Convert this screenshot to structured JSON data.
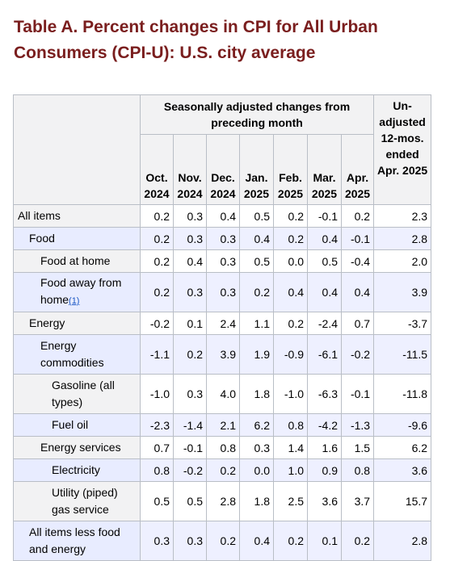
{
  "title": "Table A. Percent changes in CPI for All Urban Consumers (CPI-U): U.S. city average",
  "header": {
    "seasonally_adjusted": "Seasonally adjusted changes from preceding month",
    "unadjusted": "Un-adjusted 12-mos. ended Apr. 2025",
    "months": [
      {
        "month": "Oct.",
        "year": "2024"
      },
      {
        "month": "Nov.",
        "year": "2024"
      },
      {
        "month": "Dec.",
        "year": "2024"
      },
      {
        "month": "Jan.",
        "year": "2025"
      },
      {
        "month": "Feb.",
        "year": "2025"
      },
      {
        "month": "Mar.",
        "year": "2025"
      },
      {
        "month": "Apr.",
        "year": "2025"
      }
    ]
  },
  "rows": [
    {
      "label": "All items",
      "footnote": "",
      "level": 0,
      "values": [
        "0.2",
        "0.3",
        "0.4",
        "0.5",
        "0.2",
        "-0.1",
        "0.2"
      ],
      "unadjusted": "2.3"
    },
    {
      "label": "Food",
      "footnote": "",
      "level": 1,
      "values": [
        "0.2",
        "0.3",
        "0.3",
        "0.4",
        "0.2",
        "0.4",
        "-0.1"
      ],
      "unadjusted": "2.8"
    },
    {
      "label": "Food at home",
      "footnote": "",
      "level": 2,
      "values": [
        "0.2",
        "0.4",
        "0.3",
        "0.5",
        "0.0",
        "0.5",
        "-0.4"
      ],
      "unadjusted": "2.0"
    },
    {
      "label": "Food away from home",
      "footnote": "(1)",
      "level": 2,
      "values": [
        "0.2",
        "0.3",
        "0.3",
        "0.2",
        "0.4",
        "0.4",
        "0.4"
      ],
      "unadjusted": "3.9"
    },
    {
      "label": "Energy",
      "footnote": "",
      "level": 1,
      "values": [
        "-0.2",
        "0.1",
        "2.4",
        "1.1",
        "0.2",
        "-2.4",
        "0.7"
      ],
      "unadjusted": "-3.7"
    },
    {
      "label": "Energy commodities",
      "footnote": "",
      "level": 2,
      "values": [
        "-1.1",
        "0.2",
        "3.9",
        "1.9",
        "-0.9",
        "-6.1",
        "-0.2"
      ],
      "unadjusted": "-11.5"
    },
    {
      "label": "Gasoline (all types)",
      "footnote": "",
      "level": 3,
      "values": [
        "-1.0",
        "0.3",
        "4.0",
        "1.8",
        "-1.0",
        "-6.3",
        "-0.1"
      ],
      "unadjusted": "-11.8"
    },
    {
      "label": "Fuel oil",
      "footnote": "",
      "level": 3,
      "values": [
        "-2.3",
        "-1.4",
        "2.1",
        "6.2",
        "0.8",
        "-4.2",
        "-1.3"
      ],
      "unadjusted": "-9.6"
    },
    {
      "label": "Energy services",
      "footnote": "",
      "level": 2,
      "values": [
        "0.7",
        "-0.1",
        "0.8",
        "0.3",
        "1.4",
        "1.6",
        "1.5"
      ],
      "unadjusted": "6.2"
    },
    {
      "label": "Electricity",
      "footnote": "",
      "level": 3,
      "values": [
        "0.8",
        "-0.2",
        "0.2",
        "0.0",
        "1.0",
        "0.9",
        "0.8"
      ],
      "unadjusted": "3.6"
    },
    {
      "label": "Utility (piped) gas service",
      "footnote": "",
      "level": 3,
      "values": [
        "0.5",
        "0.5",
        "2.8",
        "1.8",
        "2.5",
        "3.6",
        "3.7"
      ],
      "unadjusted": "15.7"
    },
    {
      "label": "All items less food and energy",
      "footnote": "",
      "level": 1,
      "values": [
        "0.3",
        "0.3",
        "0.2",
        "0.4",
        "0.2",
        "0.1",
        "0.2"
      ],
      "unadjusted": "2.8"
    }
  ]
}
